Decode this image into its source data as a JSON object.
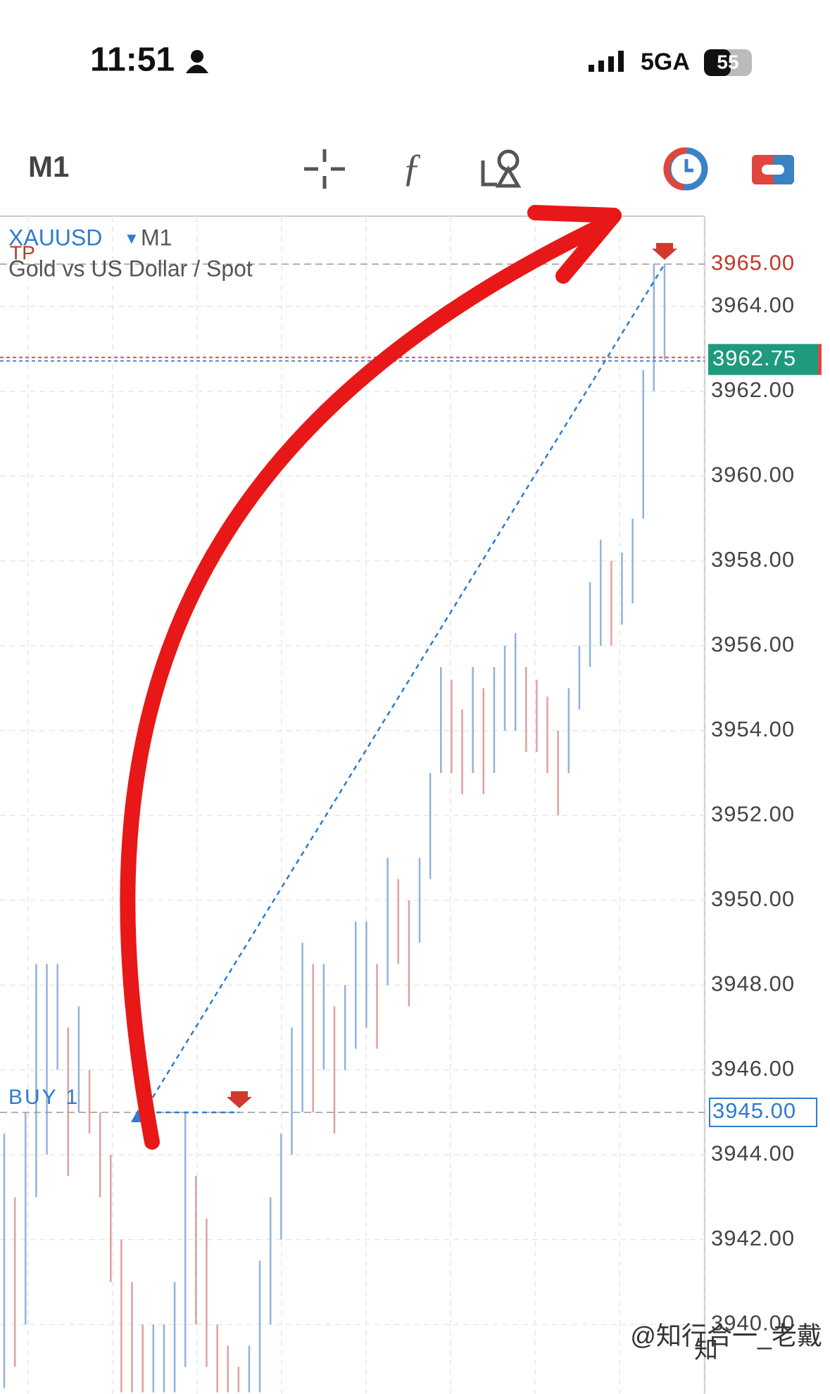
{
  "status_bar": {
    "time": "11:51",
    "network": "5GA",
    "battery": "55"
  },
  "toolbar": {
    "timeframe": "M1"
  },
  "legend": {
    "symbol": "XAUUSD",
    "timeframe": "M1",
    "description": "Gold vs US Dollar / Spot"
  },
  "watermark": "@知行合一_老戴",
  "chart_data": {
    "type": "bar-range",
    "categories": [
      null,
      null,
      null,
      null,
      null,
      null,
      null,
      null,
      null,
      null,
      null,
      null,
      null,
      null,
      null,
      null,
      null,
      null,
      null,
      null,
      null,
      null,
      null,
      null,
      null,
      null,
      null,
      null,
      null,
      null,
      null,
      null,
      null,
      null,
      null,
      null,
      null,
      null,
      null,
      null,
      null,
      null,
      null,
      null,
      null,
      null,
      null,
      null,
      null,
      null,
      null,
      null,
      null,
      null,
      null,
      null,
      null,
      null,
      null,
      null,
      null,
      null,
      null
    ],
    "high": [
      3944.5,
      3943,
      3945,
      3948.5,
      3948.5,
      3948.5,
      3947,
      3947.5,
      3946,
      3945,
      3944,
      3942,
      3941,
      3940,
      3940,
      3940,
      3941,
      3945,
      3943.5,
      3942.5,
      3940,
      3939.5,
      3939,
      3939.5,
      3941.5,
      3943,
      3944.5,
      3947,
      3949,
      3948.5,
      3948.5,
      3947.5,
      3948,
      3949.5,
      3949.5,
      3948.5,
      3951,
      3950.5,
      3950,
      3951,
      3953,
      3955.5,
      3955.2,
      3954.5,
      3955.5,
      3955,
      3955.5,
      3956,
      3956.3,
      3955.5,
      3955.2,
      3954.8,
      3954,
      3955,
      3956,
      3957.5,
      3958.5,
      3958,
      3958.2,
      3959,
      3962.5,
      3965,
      3965
    ],
    "low": [
      3938.5,
      3939,
      3940,
      3943,
      3944,
      3946,
      3943.5,
      3945,
      3944.5,
      3943,
      3941,
      3938.4,
      3938.4,
      3938.4,
      3938.4,
      3938.4,
      3938.4,
      3939,
      3940,
      3939,
      3938.4,
      3938.4,
      3938.4,
      3938.4,
      3938.4,
      3940,
      3942,
      3944,
      3945,
      3945,
      3946,
      3944.5,
      3946,
      3946.5,
      3947,
      3946.5,
      3948,
      3948.5,
      3947.5,
      3949,
      3950.5,
      3953,
      3953,
      3952.5,
      3953,
      3952.5,
      3953,
      3954,
      3954,
      3953.5,
      3953.5,
      3953,
      3952,
      3953,
      3954.5,
      3955.5,
      3956,
      3956,
      3956.5,
      3957,
      3959,
      3962,
      3962.75
    ],
    "up_color": "#8fb3dc",
    "down_color": "#e0a0a0",
    "ylim": [
      3938.36,
      3966.13
    ],
    "yticks": [
      {
        "value": 3940,
        "label": "3940.00"
      },
      {
        "value": 3942,
        "label": "3942.00"
      },
      {
        "value": 3944,
        "label": "3944.00"
      },
      {
        "value": 3946,
        "label": "3946.00"
      },
      {
        "value": 3948,
        "label": "3948.00"
      },
      {
        "value": 3950,
        "label": "3950.00"
      },
      {
        "value": 3952,
        "label": "3952.00"
      },
      {
        "value": 3954,
        "label": "3954.00"
      },
      {
        "value": 3956,
        "label": "3956.00"
      },
      {
        "value": 3958,
        "label": "3958.00"
      },
      {
        "value": 3960,
        "label": "3960.00"
      },
      {
        "value": 3962,
        "label": "3962.00"
      },
      {
        "value": 3964,
        "label": "3964.00"
      }
    ],
    "grid": true,
    "price_lines": [
      {
        "name": "TP",
        "value": 3965,
        "label": "3965.00",
        "color": "#c0392b"
      },
      {
        "name": "BUY 1",
        "value": 3945,
        "label": "3945.00",
        "color": "#2e7bcf"
      },
      {
        "value": 3962.75,
        "label": "3962.75",
        "color": "#1e9a7e"
      }
    ]
  }
}
